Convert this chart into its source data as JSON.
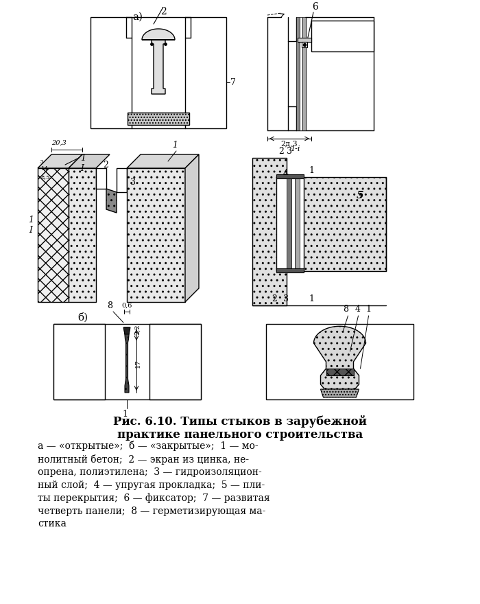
{
  "bg_color": "#ffffff",
  "line_color": "#000000",
  "title_line1": "Рис. 6.10. Типы стыков в зарубежной",
  "title_line2": "практике панельного строительства",
  "caption": "а — «открытые»;  б — «закрытые»;  1 — мо-\nнолитный бетон;  2 — экран из цинка, не-\nопрена, полиэтилена;  3 — гидроизоляцион-\nный слой;  4 — упругая прокладка;  5 — пли-\nты перекрытия;  6 — фиксатор;  7 — развитая\nчетверть панели;  8 — герметизирующая ма-\nстика",
  "label_a": "а)",
  "label_b": "б)",
  "label_2": "2",
  "label_6": "6",
  "label_7": "7",
  "dim_203": "2д,3"
}
